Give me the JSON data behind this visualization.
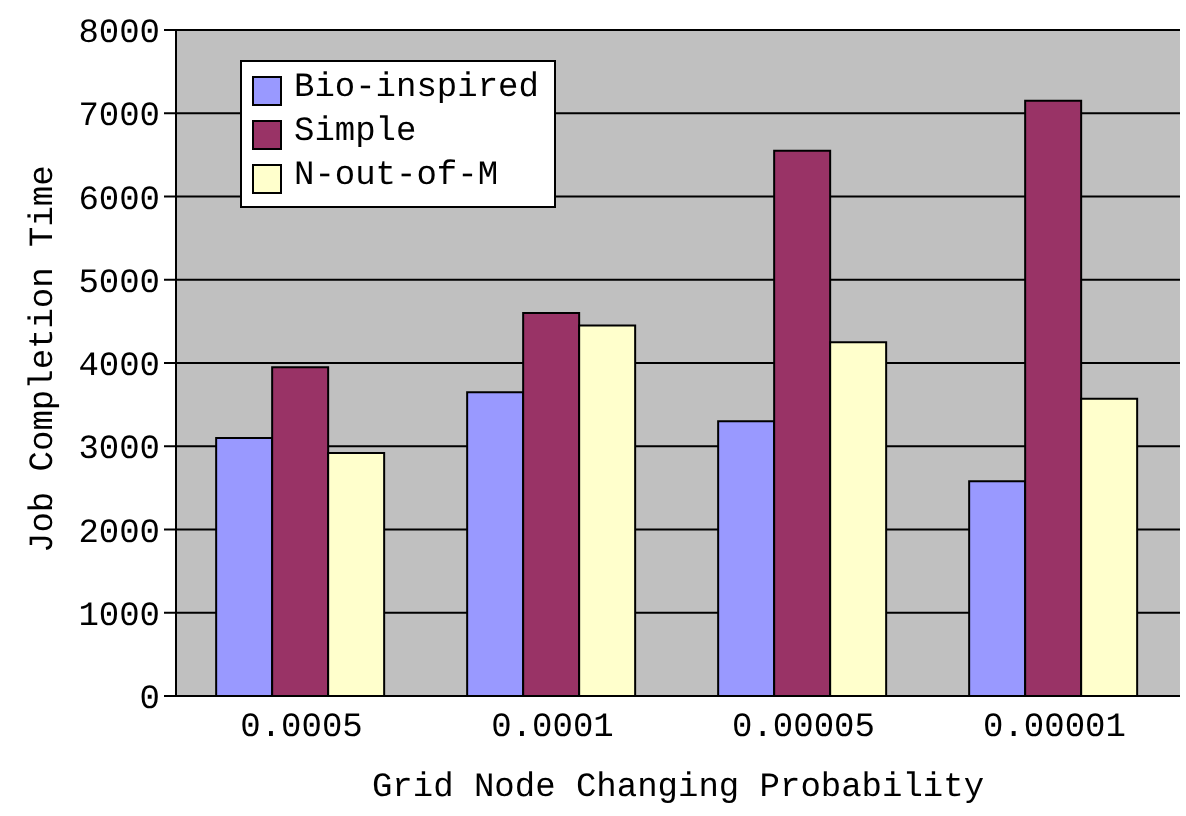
{
  "chart_data": {
    "type": "bar",
    "xlabel": "Grid Node Changing Probability",
    "ylabel": "Job Completion Time",
    "categories": [
      "0.0005",
      "0.0001",
      "0.00005",
      "0.00001"
    ],
    "series": [
      {
        "name": "Bio-inspired",
        "color": "#9999ff",
        "values": [
          3100,
          3650,
          3300,
          2580
        ]
      },
      {
        "name": "Simple",
        "color": "#993366",
        "values": [
          3950,
          4600,
          6550,
          7150
        ]
      },
      {
        "name": "N-out-of-M",
        "color": "#ffffcc",
        "values": [
          2920,
          4450,
          4250,
          3570
        ]
      }
    ],
    "ylim": [
      0,
      8000
    ],
    "yticks": [
      0,
      1000,
      2000,
      3000,
      4000,
      5000,
      6000,
      7000,
      8000
    ],
    "grid": "y",
    "legend": "top left"
  }
}
